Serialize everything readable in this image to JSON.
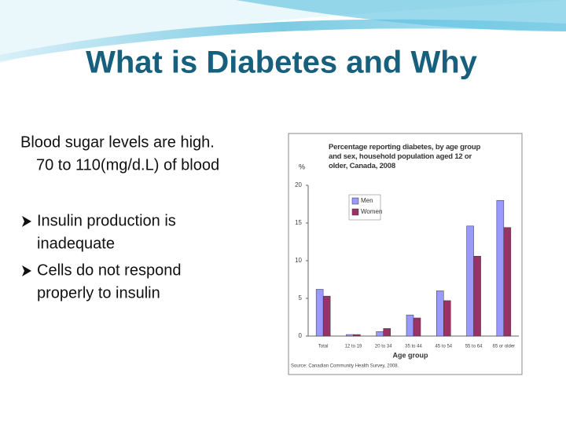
{
  "slide": {
    "title": "What is Diabetes and Why",
    "paragraph": [
      "Blood sugar levels are high.",
      "70 to 110(mg/d.L) of blood"
    ],
    "bullets": [
      [
        "Insulin production is",
        "inadequate"
      ],
      [
        "Cells do not respond",
        "properly to insulin"
      ]
    ]
  },
  "chart_data": {
    "type": "bar",
    "title": "Percentage reporting diabetes, by age group and sex, household population aged 12 or older, Canada, 2008",
    "y_label": "%",
    "x_label": "Age group",
    "source": "Source: Canadian Community Health Survey, 2008.",
    "categories": [
      "Total",
      "12 to 19",
      "20 to 34",
      "35 to 44",
      "45 to 54",
      "55 to 64",
      "65 or older"
    ],
    "series": [
      {
        "name": "Men",
        "color": "#9999ff",
        "values": [
          6.2,
          0.2,
          0.6,
          2.8,
          6.0,
          14.6,
          18.0
        ]
      },
      {
        "name": "Women",
        "color": "#993366",
        "values": [
          5.3,
          0.2,
          1.0,
          2.4,
          4.7,
          10.6,
          14.4
        ]
      }
    ],
    "ylim": [
      0,
      20
    ],
    "yticks": [
      0,
      5,
      10,
      15,
      20
    ],
    "legend": "upper left"
  }
}
